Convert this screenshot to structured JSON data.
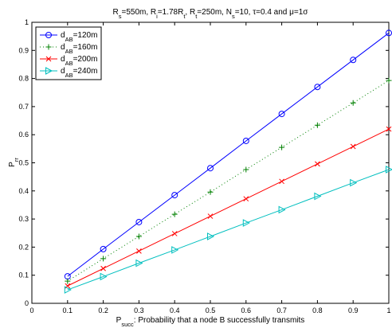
{
  "chart_data": {
    "type": "line",
    "title_parts": [
      {
        "t": "R"
      },
      {
        "t": "s",
        "sub": true
      },
      {
        "t": "=550m, R"
      },
      {
        "t": "i",
        "sub": true
      },
      {
        "t": "=1.78R"
      },
      {
        "t": "t",
        "sub": true
      },
      {
        "t": ", R"
      },
      {
        "t": "t",
        "sub": true
      },
      {
        "t": "=250m, N"
      },
      {
        "t": "s",
        "sub": true
      },
      {
        "t": "=10, τ=0.4 and μ=1σ"
      }
    ],
    "xlabel_parts": [
      {
        "t": "P"
      },
      {
        "t": "succ",
        "sub": true
      },
      {
        "t": ": Probability that a node B successfully transmits"
      }
    ],
    "ylabel_parts": [
      {
        "t": "P"
      },
      {
        "t": "rr",
        "sub": true
      }
    ],
    "xlim": [
      0,
      1
    ],
    "ylim": [
      0,
      1
    ],
    "xticks": [
      "0",
      "0.1",
      "0.2",
      "0.3",
      "0.4",
      "0.5",
      "0.6",
      "0.7",
      "0.8",
      "0.9",
      "1"
    ],
    "yticks": [
      "0",
      "0.1",
      "0.2",
      "0.3",
      "0.4",
      "0.5",
      "0.6",
      "0.7",
      "0.8",
      "0.9",
      "1"
    ],
    "x": [
      0.1,
      0.2,
      0.3,
      0.4,
      0.5,
      0.6,
      0.7,
      0.8,
      0.9,
      1.0
    ],
    "legend_position": "top-left",
    "series": [
      {
        "label_main": "d",
        "label_sub": "AB",
        "label_rest": "=120m",
        "color": "#0000ff",
        "marker": "circle",
        "line": "solid",
        "values": [
          0.096,
          0.193,
          0.289,
          0.385,
          0.481,
          0.578,
          0.674,
          0.77,
          0.866,
          0.962
        ]
      },
      {
        "label_main": "d",
        "label_sub": "AB",
        "label_rest": "=160m",
        "color": "#008000",
        "marker": "plus",
        "line": "dotted",
        "values": [
          0.079,
          0.159,
          0.238,
          0.317,
          0.396,
          0.476,
          0.555,
          0.634,
          0.713,
          0.793
        ]
      },
      {
        "label_main": "d",
        "label_sub": "AB",
        "label_rest": "=200m",
        "color": "#ff0000",
        "marker": "x",
        "line": "solid",
        "values": [
          0.062,
          0.124,
          0.186,
          0.248,
          0.31,
          0.372,
          0.434,
          0.496,
          0.558,
          0.62
        ]
      },
      {
        "label_main": "d",
        "label_sub": "AB",
        "label_rest": "=240m",
        "color": "#00bfbf",
        "marker": "triangle-right",
        "line": "solid",
        "values": [
          0.048,
          0.095,
          0.143,
          0.19,
          0.238,
          0.286,
          0.333,
          0.381,
          0.429,
          0.476
        ]
      }
    ]
  }
}
